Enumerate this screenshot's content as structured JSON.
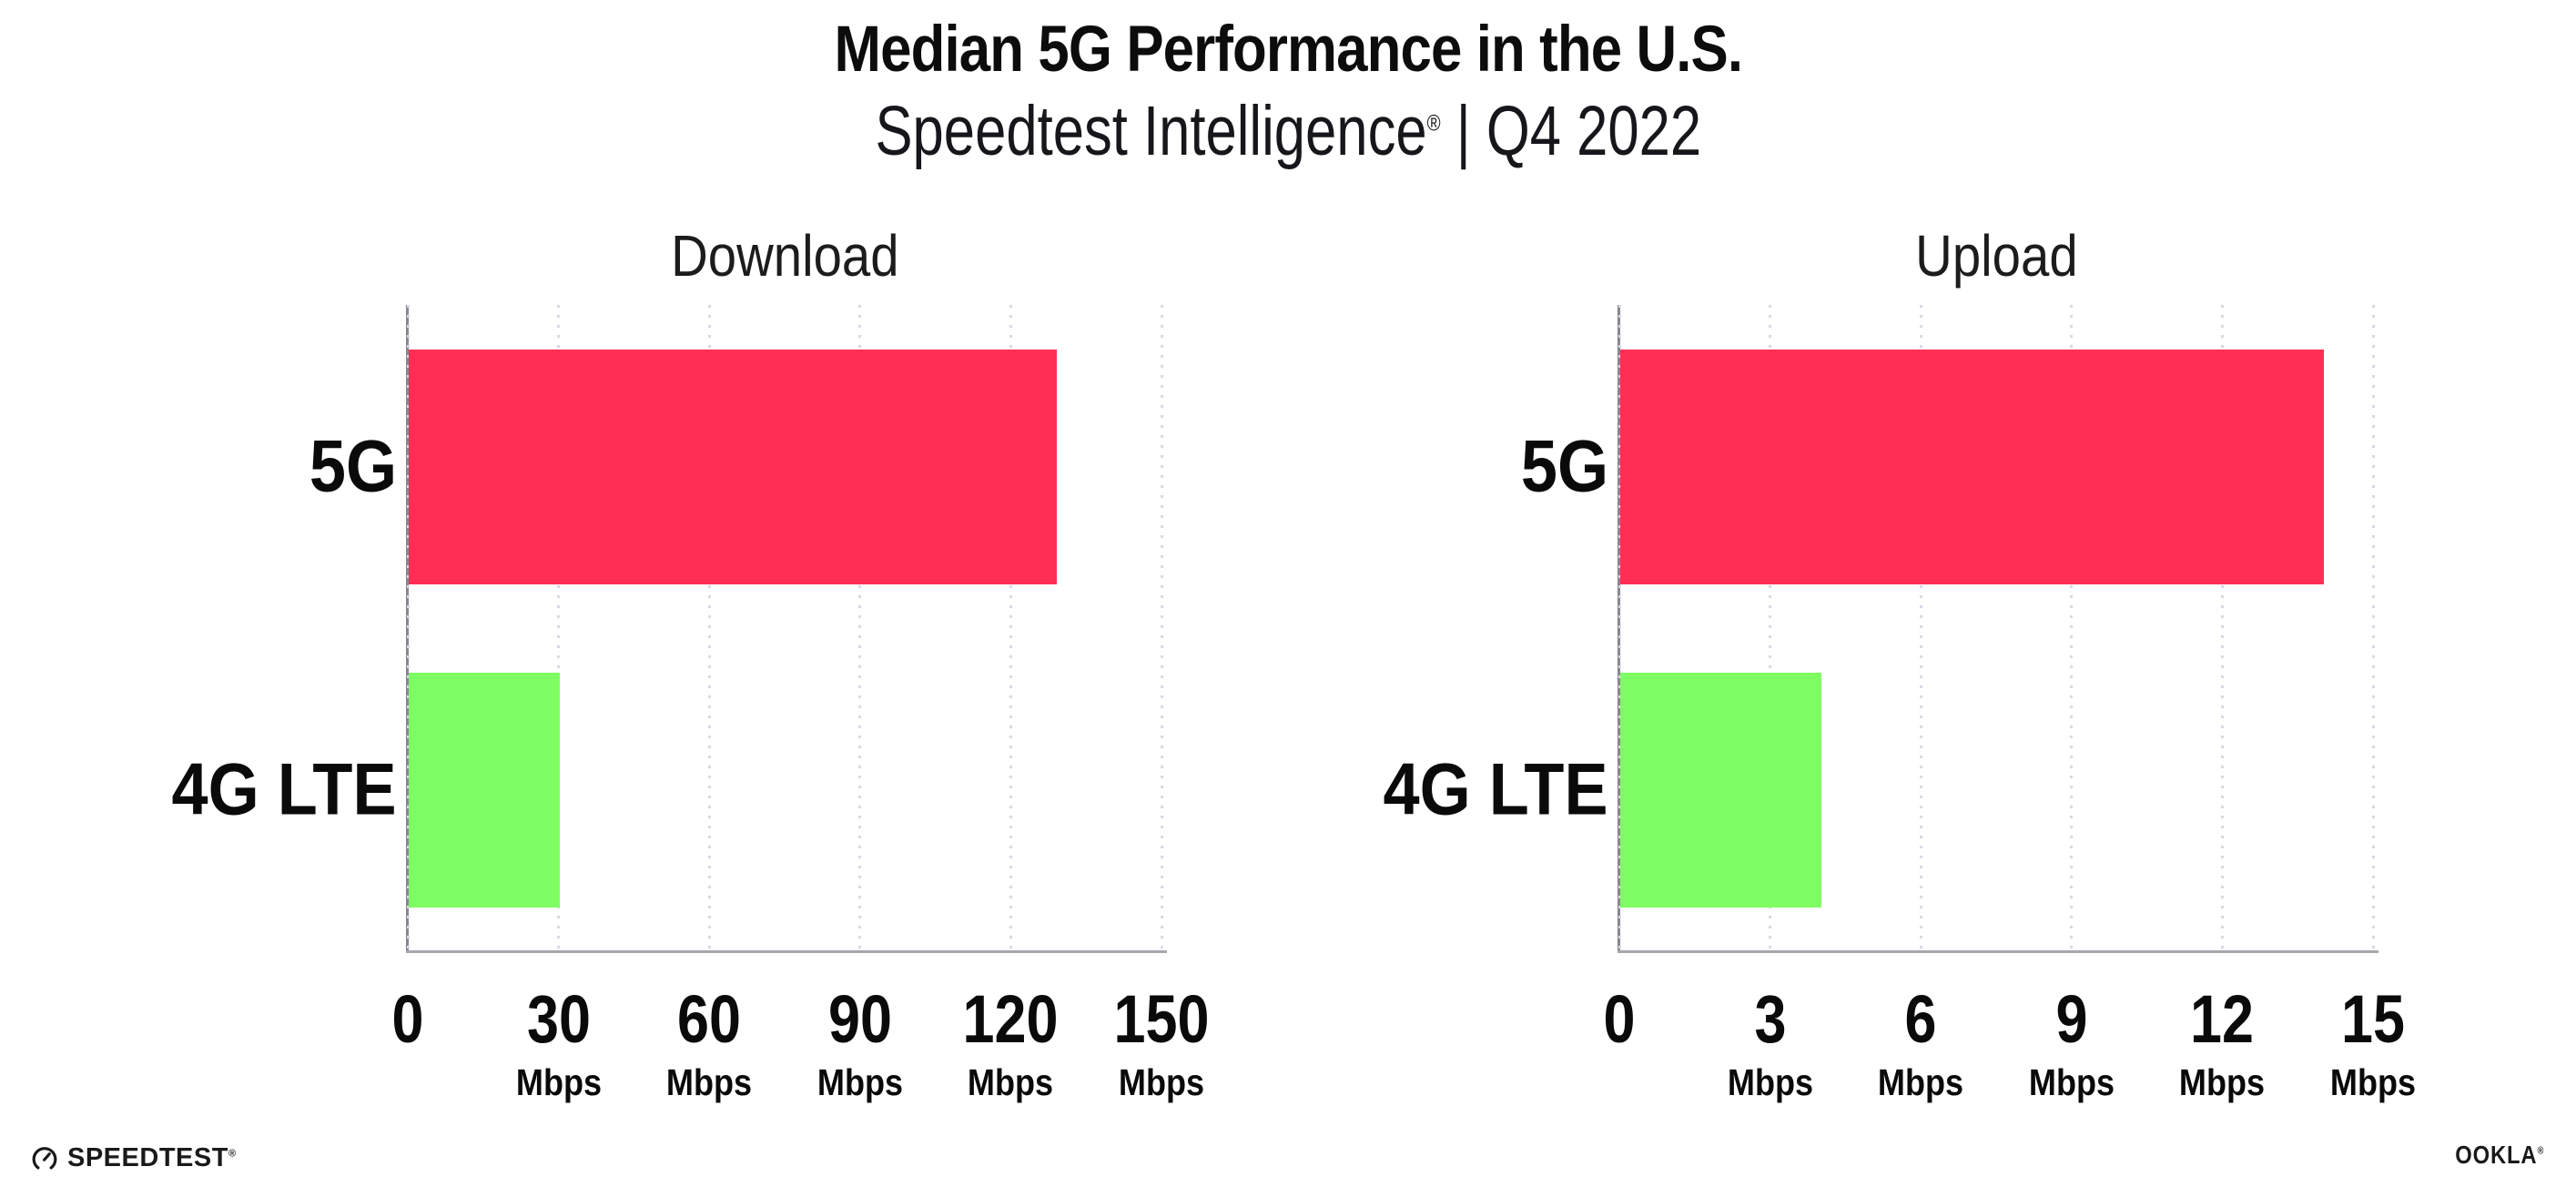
{
  "header": {
    "title": "Median 5G Performance in the U.S.",
    "subtitle": {
      "brand": "Speedtest Intelligence",
      "registered_mark": "®",
      "separator": " | ",
      "period": "Q4 2022"
    }
  },
  "colors": {
    "bar_5g": "#ff2e55",
    "bar_4g_lte": "#7efe62",
    "gridline": "#d9d9e5",
    "y_axis": "#87878f",
    "x_axis": "#a6a6ae",
    "text": "#0c0c0c"
  },
  "icons": {
    "speedtest_gauge": "speedtest-gauge-icon"
  },
  "footer": {
    "speedtest_wordmark": "SPEEDTEST",
    "speedtest_mark": "®",
    "ookla_wordmark": "OOKLA",
    "ookla_mark": "®"
  },
  "chart_data": [
    {
      "type": "bar",
      "orientation": "horizontal",
      "title": "Download",
      "categories": [
        "5G",
        "4G LTE"
      ],
      "values": [
        129,
        30
      ],
      "unit": "Mbps",
      "xlim": [
        0,
        150
      ],
      "xticks": [
        0,
        30,
        60,
        90,
        120,
        150
      ],
      "colors": [
        "#ff2e55",
        "#7efe62"
      ],
      "grid": "dotted-vertical",
      "legend": "none"
    },
    {
      "type": "bar",
      "orientation": "horizontal",
      "title": "Upload",
      "categories": [
        "5G",
        "4G LTE"
      ],
      "values": [
        14,
        4
      ],
      "unit": "Mbps",
      "xlim": [
        0,
        15
      ],
      "xticks": [
        0,
        3,
        6,
        9,
        12,
        15
      ],
      "colors": [
        "#ff2e55",
        "#7efe62"
      ],
      "grid": "dotted-vertical",
      "legend": "none"
    }
  ]
}
